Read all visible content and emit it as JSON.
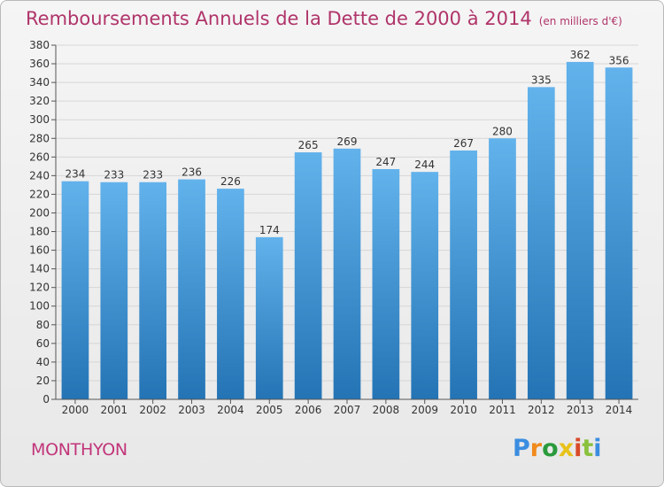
{
  "title": {
    "main": "Remboursements Annuels de la Dette de 2000 à 2014",
    "unit": "(en milliers d'€)"
  },
  "town": "MONTHYON",
  "logo": {
    "text": "Proxiti"
  },
  "colors": {
    "bar_top": "#62b2ec",
    "bar_bottom": "#2474b5",
    "grid": "#d6d6d6",
    "axis": "#555555",
    "title": "#b0346a"
  },
  "chart_data": {
    "type": "bar",
    "title": "Remboursements Annuels de la Dette de 2000 à 2014",
    "xlabel": "",
    "ylabel": "",
    "categories": [
      "2000",
      "2001",
      "2002",
      "2003",
      "2004",
      "2005",
      "2006",
      "2007",
      "2008",
      "2009",
      "2010",
      "2011",
      "2012",
      "2013",
      "2014"
    ],
    "values": [
      234,
      233,
      233,
      236,
      226,
      174,
      265,
      269,
      247,
      244,
      267,
      280,
      335,
      362,
      356
    ],
    "ylim": [
      0,
      380
    ],
    "yticks": [
      0,
      20,
      40,
      60,
      80,
      100,
      120,
      140,
      160,
      180,
      200,
      220,
      240,
      260,
      280,
      300,
      320,
      340,
      360,
      380
    ],
    "grid": true
  }
}
